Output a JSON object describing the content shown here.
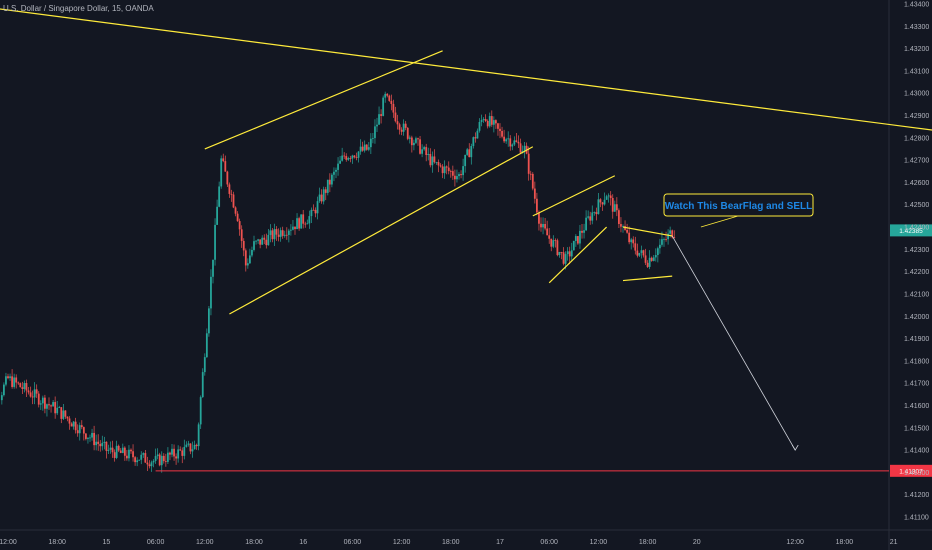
{
  "header": {
    "symbol_line": "U.S. Dollar / Singapore Dollar, 15, OANDA"
  },
  "annotation": {
    "text": "Watch This BearFlag and SELL"
  },
  "chart_data": {
    "type": "candlestick",
    "title": "U.S. Dollar / Singapore Dollar, 15, OANDA",
    "symbol": "USDSGD",
    "interval": "15",
    "source": "OANDA",
    "ylim": [
      1.41,
      1.4345
    ],
    "y_ticks": [
      "1.43400",
      "1.43300",
      "1.43200",
      "1.43100",
      "1.43000",
      "1.42900",
      "1.42800",
      "1.42700",
      "1.42600",
      "1.42500",
      "1.42400",
      "1.42300",
      "1.42200",
      "1.42100",
      "1.42000",
      "1.41900",
      "1.41800",
      "1.41700",
      "1.41600",
      "1.41500",
      "1.41400",
      "1.41300",
      "1.41200",
      "1.41100"
    ],
    "x_ticks": [
      "12:00",
      "18:00",
      "15",
      "06:00",
      "12:00",
      "18:00",
      "16",
      "06:00",
      "12:00",
      "18:00",
      "17",
      "06:00",
      "12:00",
      "18:00",
      "20",
      "12:00",
      "18:00",
      "21"
    ],
    "current_price_label": "1.42385",
    "support_price_label": "1.41307",
    "support_level": 1.41307,
    "current_price": 1.42385,
    "colors": {
      "up": "#26a69a",
      "down": "#ef5350",
      "background": "#131722",
      "trendline": "#ffeb3b",
      "support": "#f23645",
      "arrow": "#d1d4dc",
      "callout": "#1e88e5"
    },
    "grid": false,
    "trendlines": [
      {
        "name": "descending resistance",
        "from": [
          "14 10:30",
          1.4338
        ],
        "to": [
          "21 12:00",
          1.428
        ]
      },
      {
        "name": "rising channel upper",
        "from": [
          "15 12:00",
          1.4275
        ],
        "to": [
          "16 17:00",
          1.4319
        ]
      },
      {
        "name": "rising channel lower",
        "from": [
          "15 15:00",
          1.4201
        ],
        "to": [
          "17 04:00",
          1.4276
        ]
      },
      {
        "name": "flag upper",
        "from": [
          "17 04:00",
          1.4245
        ],
        "to": [
          "17 14:00",
          1.4263
        ]
      },
      {
        "name": "flag lower",
        "from": [
          "17 06:00",
          1.4215
        ],
        "to": [
          "17 13:00",
          1.424
        ]
      },
      {
        "name": "pennant upper",
        "from": [
          "17 15:00",
          1.424
        ],
        "to": [
          "17 21:00",
          1.4236
        ]
      },
      {
        "name": "pennant lower",
        "from": [
          "17 15:00",
          1.4216
        ],
        "to": [
          "17 21:00",
          1.4218
        ]
      }
    ],
    "projection": {
      "from": [
        "17 21:00",
        1.4236
      ],
      "to": [
        "20 12:00",
        1.414
      ]
    },
    "key_points": [
      {
        "t": "14 09:00",
        "close": 1.415
      },
      {
        "t": "14 12:00",
        "close": 1.4172
      },
      {
        "t": "14 18:00",
        "close": 1.4158
      },
      {
        "t": "15 00:00",
        "close": 1.414
      },
      {
        "t": "15 06:00",
        "close": 1.4135
      },
      {
        "t": "15 11:00",
        "close": 1.4142
      },
      {
        "t": "15 14:00",
        "close": 1.427
      },
      {
        "t": "15 16:00",
        "close": 1.4245
      },
      {
        "t": "15 17:00",
        "close": 1.4223
      },
      {
        "t": "15 18:00",
        "close": 1.4232
      },
      {
        "t": "16 01:00",
        "close": 1.4245
      },
      {
        "t": "16 05:00",
        "close": 1.4272
      },
      {
        "t": "16 08:00",
        "close": 1.4275
      },
      {
        "t": "16 10:00",
        "close": 1.4298
      },
      {
        "t": "16 12:00",
        "close": 1.4285
      },
      {
        "t": "16 16:00",
        "close": 1.4268
      },
      {
        "t": "16 19:00",
        "close": 1.4263
      },
      {
        "t": "16 22:00",
        "close": 1.429
      },
      {
        "t": "17 00:00",
        "close": 1.4282
      },
      {
        "t": "17 03:00",
        "close": 1.4275
      },
      {
        "t": "17 05:00",
        "close": 1.424
      },
      {
        "t": "17 08:00",
        "close": 1.4225
      },
      {
        "t": "17 11:00",
        "close": 1.4245
      },
      {
        "t": "17 13:00",
        "close": 1.4255
      },
      {
        "t": "17 16:00",
        "close": 1.4232
      },
      {
        "t": "17 18:00",
        "close": 1.4225
      },
      {
        "t": "17 21:00",
        "close": 1.4238
      }
    ]
  }
}
